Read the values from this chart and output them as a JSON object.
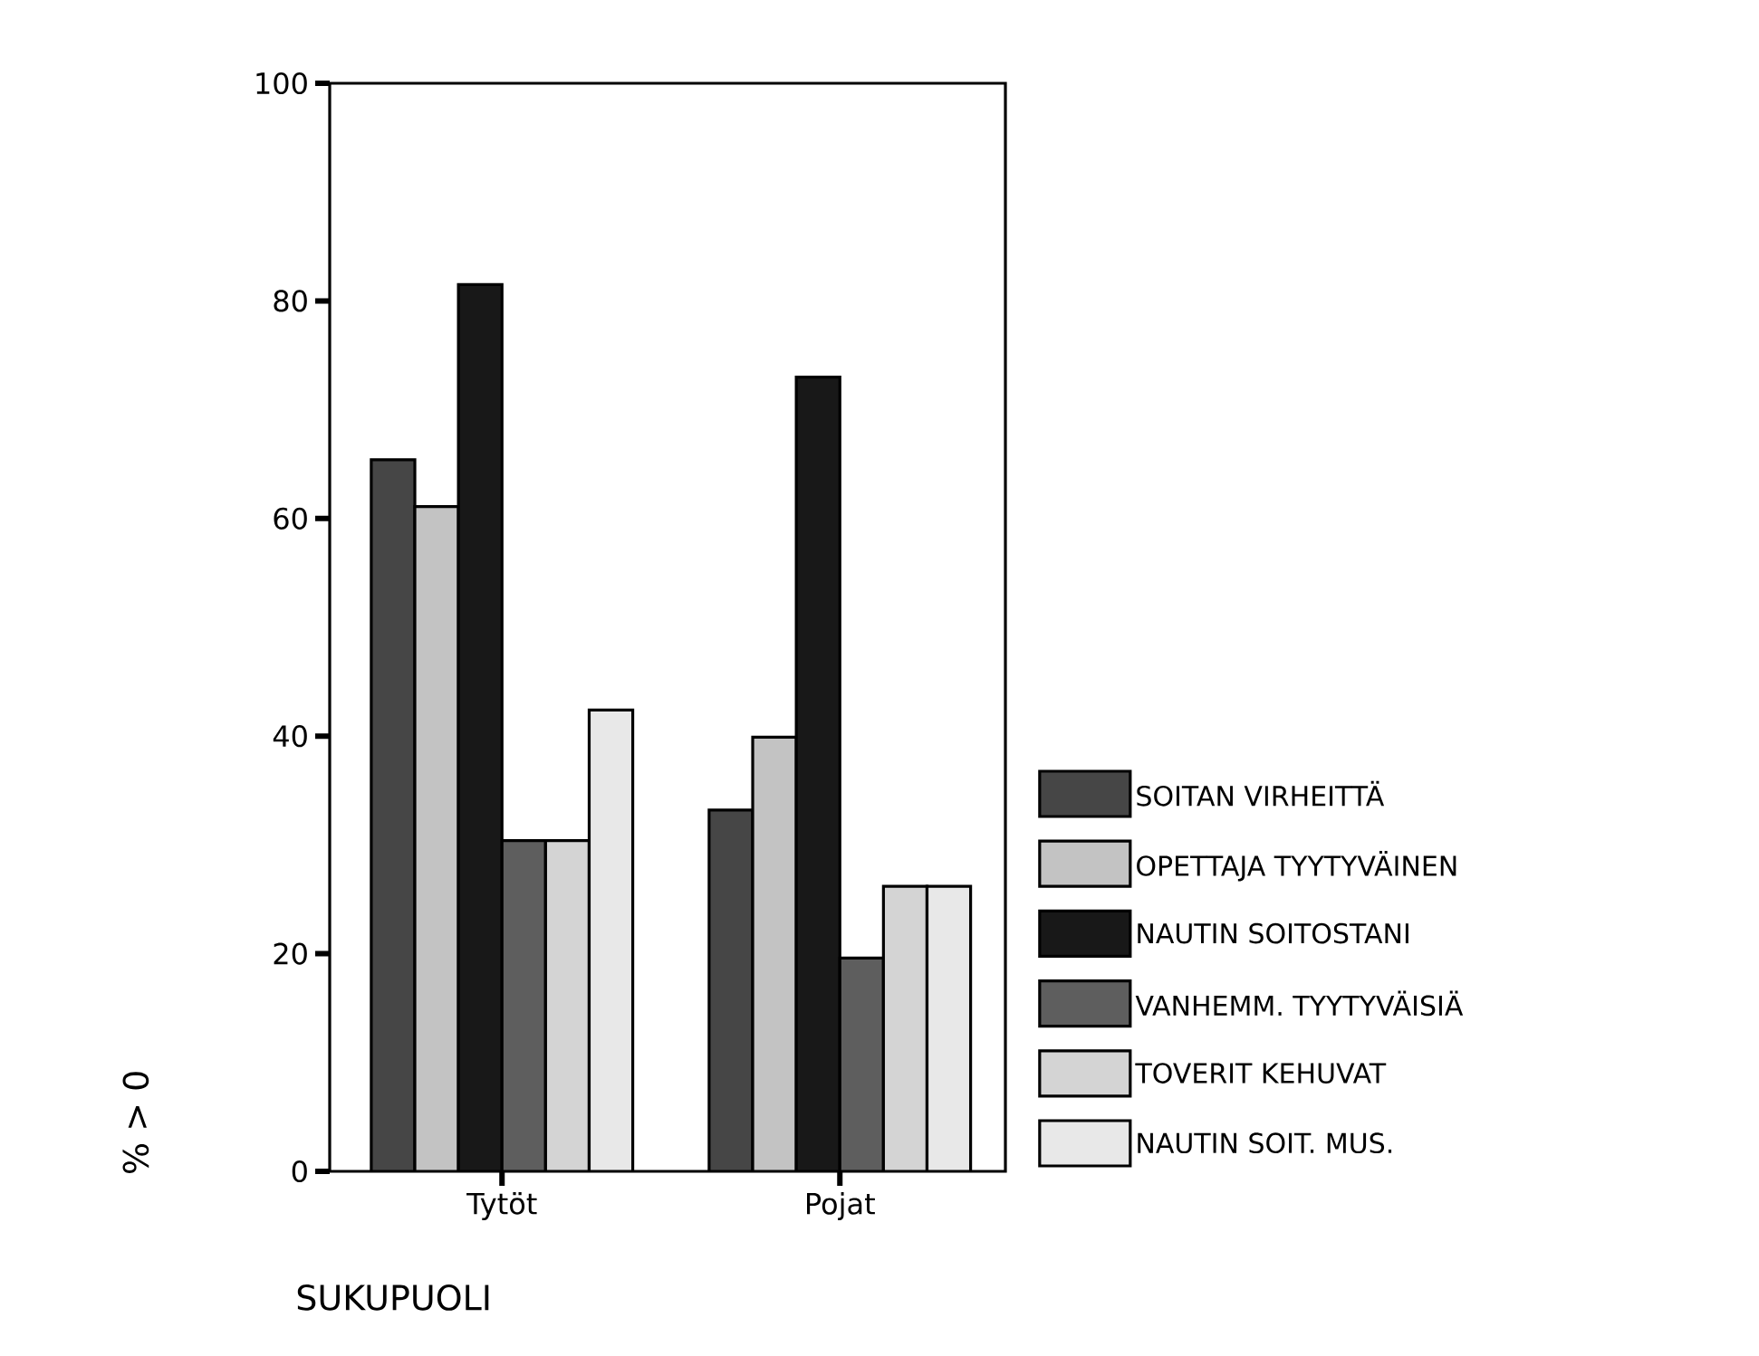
{
  "chart_data": {
    "type": "bar",
    "xlabel": "SUKUPUOLI",
    "ylabel": "% > 0",
    "categories": [
      "Tytöt",
      "Pojat"
    ],
    "ylim": [
      0,
      100
    ],
    "yticks": [
      0,
      20,
      40,
      60,
      80,
      100
    ],
    "grid": false,
    "legend": "right",
    "series": [
      {
        "name": "SOITAN VIRHEITTÄ",
        "color": "#464646",
        "values": [
          65.4,
          33.2
        ]
      },
      {
        "name": "OPETTAJA TYYTYVÄINEN",
        "color": "#c3c3c3",
        "values": [
          61.1,
          39.9
        ]
      },
      {
        "name": "NAUTIN SOITOSTANI",
        "color": "#181818",
        "values": [
          81.5,
          73.0
        ]
      },
      {
        "name": "VANHEMM. TYYTYVÄISIÄ",
        "color": "#5e5e5e",
        "values": [
          30.4,
          19.6
        ]
      },
      {
        "name": "TOVERIT KEHUVAT",
        "color": "#d4d4d4",
        "values": [
          30.4,
          26.2
        ]
      },
      {
        "name": "NAUTIN SOIT. MUS.",
        "color": "#e8e8e8",
        "values": [
          42.4,
          26.2
        ]
      }
    ]
  }
}
